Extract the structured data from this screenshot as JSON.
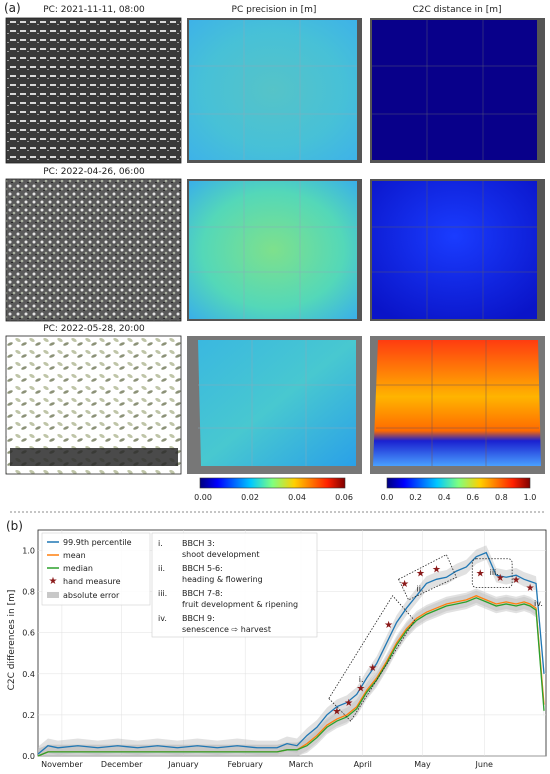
{
  "panel_a": {
    "letter": "(a)",
    "rows": [
      {
        "pc_title": "PC: 2021-11-11, 08:00"
      },
      {
        "pc_title": "PC: 2022-04-26, 06:00"
      },
      {
        "pc_title": "PC: 2022-05-28, 20:00"
      }
    ],
    "precision_title": "PC precision in [m]",
    "c2c_title": "C2C distance in [m]",
    "precision_colorbar": {
      "ticks": [
        "0.00",
        "0.02",
        "0.04",
        "0.06"
      ]
    },
    "c2c_colorbar": {
      "ticks": [
        "0.0",
        "0.2",
        "0.4",
        "0.6",
        "0.8",
        "1.0"
      ]
    }
  },
  "panel_b": {
    "letter": "(b)",
    "legend": [
      "99.9th percentile",
      "mean",
      "median",
      "hand measure",
      "absolute error"
    ],
    "stages": [
      {
        "num": "i.",
        "title": "BBCH 3:",
        "desc": "shoot development"
      },
      {
        "num": "ii.",
        "title": "BBCH 5-6:",
        "desc": "heading & flowering"
      },
      {
        "num": "iii.",
        "title": "BBCH 7-8:",
        "desc": "fruit development & ripening"
      },
      {
        "num": "iv.",
        "title": "BBCH 9:",
        "desc": "senescence ⇨ harvest"
      }
    ]
  },
  "chart_data": {
    "type": "line",
    "ylabel": "C2C differences in [m]",
    "xlabel": "",
    "ylim": [
      0,
      1.1
    ],
    "yticks": [
      "0.0",
      "0.2",
      "0.4",
      "0.6",
      "0.8",
      "1.0"
    ],
    "month_labels": [
      "November",
      "December",
      "January",
      "February",
      "March",
      "April",
      "May",
      "June"
    ],
    "x_day_range": [
      0,
      230
    ],
    "month_positions": [
      12,
      42,
      73,
      104,
      132,
      163,
      193,
      224
    ],
    "series": [
      {
        "name": "99.9th percentile",
        "color": "#1f77b4",
        "x": [
          0,
          5,
          10,
          20,
          30,
          40,
          50,
          60,
          70,
          80,
          90,
          100,
          110,
          120,
          125,
          130,
          135,
          140,
          145,
          150,
          155,
          160,
          165,
          170,
          175,
          180,
          185,
          190,
          195,
          200,
          205,
          210,
          215,
          220,
          225,
          230,
          235,
          240,
          244,
          247,
          250,
          254
        ],
        "y": [
          0.01,
          0.05,
          0.04,
          0.05,
          0.04,
          0.05,
          0.04,
          0.05,
          0.04,
          0.05,
          0.04,
          0.05,
          0.04,
          0.04,
          0.06,
          0.05,
          0.1,
          0.14,
          0.2,
          0.24,
          0.26,
          0.3,
          0.38,
          0.45,
          0.55,
          0.65,
          0.72,
          0.78,
          0.84,
          0.86,
          0.87,
          0.9,
          0.92,
          0.97,
          0.99,
          0.88,
          0.87,
          0.88,
          0.86,
          0.85,
          0.84,
          0.4
        ]
      },
      {
        "name": "mean",
        "color": "#ff7f0e",
        "x": [
          0,
          5,
          10,
          20,
          30,
          40,
          50,
          60,
          70,
          80,
          90,
          100,
          110,
          120,
          125,
          130,
          135,
          140,
          145,
          150,
          155,
          160,
          165,
          170,
          175,
          180,
          185,
          190,
          195,
          200,
          205,
          210,
          215,
          220,
          225,
          230,
          235,
          240,
          244,
          247,
          250,
          254
        ],
        "y": [
          0.0,
          0.02,
          0.02,
          0.02,
          0.02,
          0.02,
          0.02,
          0.02,
          0.02,
          0.02,
          0.02,
          0.02,
          0.02,
          0.02,
          0.03,
          0.03,
          0.06,
          0.1,
          0.15,
          0.18,
          0.2,
          0.24,
          0.32,
          0.38,
          0.46,
          0.55,
          0.62,
          0.67,
          0.7,
          0.72,
          0.74,
          0.75,
          0.76,
          0.78,
          0.76,
          0.74,
          0.75,
          0.74,
          0.75,
          0.74,
          0.72,
          0.25
        ]
      },
      {
        "name": "median",
        "color": "#2ca02c",
        "x": [
          0,
          5,
          10,
          20,
          30,
          40,
          50,
          60,
          70,
          80,
          90,
          100,
          110,
          120,
          125,
          130,
          135,
          140,
          145,
          150,
          155,
          160,
          165,
          170,
          175,
          180,
          185,
          190,
          195,
          200,
          205,
          210,
          215,
          220,
          225,
          230,
          235,
          240,
          244,
          247,
          250,
          254
        ],
        "y": [
          0.0,
          0.02,
          0.02,
          0.02,
          0.02,
          0.02,
          0.02,
          0.02,
          0.02,
          0.02,
          0.02,
          0.02,
          0.02,
          0.02,
          0.03,
          0.03,
          0.05,
          0.09,
          0.14,
          0.17,
          0.19,
          0.23,
          0.31,
          0.37,
          0.45,
          0.54,
          0.61,
          0.66,
          0.69,
          0.71,
          0.73,
          0.74,
          0.75,
          0.77,
          0.75,
          0.73,
          0.74,
          0.73,
          0.74,
          0.73,
          0.71,
          0.22
        ]
      }
    ],
    "hand_measures": {
      "x": [
        150,
        156,
        162,
        168,
        176,
        184,
        192,
        200,
        222,
        232,
        240,
        247
      ],
      "y": [
        0.22,
        0.26,
        0.33,
        0.43,
        0.64,
        0.84,
        0.89,
        0.91,
        0.89,
        0.87,
        0.86,
        0.82
      ]
    }
  }
}
